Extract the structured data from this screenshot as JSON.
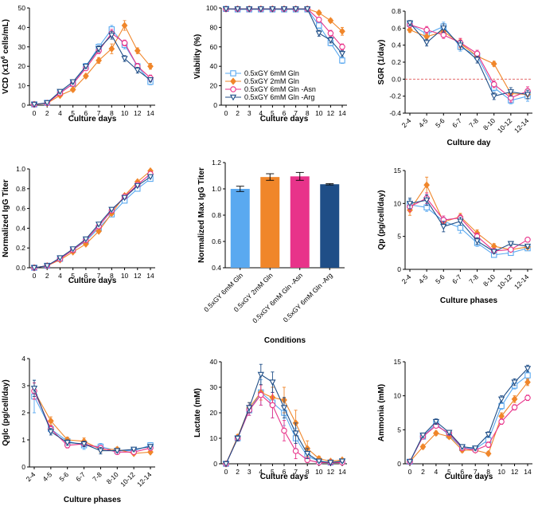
{
  "colors": {
    "g6": "#5aa9f0",
    "g2": "#f0862a",
    "asn": "#e8338a",
    "arg": "#1f4e87"
  },
  "legend": [
    {
      "key": "g6",
      "label": "0.5xGY 6mM Gln",
      "marker": "square"
    },
    {
      "key": "g2",
      "label": "0.5xGY 2mM Gln",
      "marker": "diamond"
    },
    {
      "key": "asn",
      "label": "0.5xGY 6mM Gln -Asn",
      "marker": "circle"
    },
    {
      "key": "arg",
      "label": "0.5xGY 6mM Gln -Arg",
      "marker": "triangle-down"
    }
  ],
  "chart_data": [
    {
      "id": "vcd",
      "type": "line",
      "ylabel_pre": "VCD (x10",
      "ylabel_sup": "6",
      "ylabel_post": " cells/mL)",
      "xlabel": "Culture days",
      "xticks": [
        0,
        2,
        4,
        5,
        6,
        7,
        8,
        10,
        12,
        14
      ],
      "ylim": [
        0,
        50
      ],
      "yticks": [
        0,
        10,
        20,
        30,
        40,
        50
      ],
      "series": [
        {
          "key": "g6",
          "values": [
            0.4,
            1.2,
            6.5,
            11,
            20,
            30,
            39,
            31,
            20,
            12
          ],
          "err": [
            0.3,
            0.4,
            0.8,
            1,
            1.5,
            1.5,
            2,
            2,
            1.5,
            1.5
          ]
        },
        {
          "key": "g2",
          "values": [
            0.4,
            1,
            5,
            8,
            15,
            23,
            29,
            41,
            28,
            20
          ],
          "err": [
            0.3,
            0.4,
            0.6,
            1,
            1,
            1.5,
            2.5,
            2.5,
            1.5,
            1.5
          ]
        },
        {
          "key": "asn",
          "values": [
            0.4,
            1.1,
            6.2,
            11,
            19,
            28,
            37,
            32,
            20,
            14
          ],
          "err": [
            0.3,
            0.4,
            0.8,
            1,
            1,
            1.5,
            2,
            1.5,
            1.5,
            1.5
          ]
        },
        {
          "key": "arg",
          "values": [
            0.4,
            1.2,
            7,
            12,
            20,
            29,
            36,
            24,
            18,
            13
          ],
          "err": [
            0.3,
            0.4,
            0.8,
            1,
            1,
            1.5,
            2,
            1.5,
            1.5,
            1
          ]
        }
      ]
    },
    {
      "id": "viability",
      "type": "line",
      "ylabel": "Viability (%)",
      "xlabel": "Culture days",
      "xticks": [
        0,
        2,
        3,
        4,
        5,
        6,
        7,
        8,
        10,
        12,
        14
      ],
      "ylim": [
        0,
        100
      ],
      "yticks": [
        0,
        20,
        40,
        60,
        80,
        100
      ],
      "series": [
        {
          "key": "g6",
          "values": [
            99,
            98.5,
            98.5,
            98.5,
            98.5,
            98.5,
            98.5,
            98.5,
            82,
            64,
            46
          ],
          "err": [
            0.5,
            0.5,
            0.5,
            0.5,
            0.5,
            0.5,
            0.5,
            0.5,
            3,
            3,
            3
          ]
        },
        {
          "key": "g2",
          "values": [
            99,
            99,
            99,
            99,
            99,
            99,
            99,
            99,
            95,
            87,
            76
          ],
          "err": [
            0.5,
            0.5,
            0.5,
            0.5,
            0.5,
            0.5,
            0.5,
            0.5,
            2,
            2,
            4
          ]
        },
        {
          "key": "asn",
          "values": [
            99,
            99,
            99,
            99,
            99,
            99,
            99,
            99,
            88,
            74,
            60
          ],
          "err": [
            0.5,
            0.5,
            0.5,
            0.5,
            0.5,
            0.5,
            0.5,
            0.5,
            2,
            3,
            3
          ]
        },
        {
          "key": "arg",
          "values": [
            99,
            99,
            99,
            99,
            99,
            99,
            99,
            99,
            74,
            67,
            53
          ],
          "err": [
            0.5,
            0.5,
            0.5,
            0.5,
            0.5,
            0.5,
            0.5,
            0.5,
            3,
            3,
            3
          ]
        }
      ]
    },
    {
      "id": "sgr",
      "type": "line",
      "ylabel": "SGR  (1/day)",
      "xlabel": "Culture day",
      "xticks": [
        "2-4",
        "4-5",
        "5-6",
        "6-7",
        "7-8",
        "8-10",
        "10-12",
        "12-14"
      ],
      "ylim": [
        -0.4,
        0.8
      ],
      "yticks": [
        -0.4,
        -0.2,
        0.0,
        0.2,
        0.4,
        0.6,
        0.8
      ],
      "zero_line": true,
      "series": [
        {
          "key": "g6",
          "values": [
            0.65,
            0.53,
            0.62,
            0.38,
            0.27,
            -0.1,
            -0.25,
            -0.2
          ],
          "err": [
            0.03,
            0.04,
            0.05,
            0.05,
            0.04,
            0.04,
            0.04,
            0.06
          ]
        },
        {
          "key": "g2",
          "values": [
            0.58,
            0.5,
            0.56,
            0.42,
            0.27,
            0.18,
            -0.17,
            -0.18
          ],
          "err": [
            0.03,
            0.03,
            0.04,
            0.05,
            0.04,
            0.03,
            0.04,
            0.05
          ]
        },
        {
          "key": "asn",
          "values": [
            0.64,
            0.58,
            0.52,
            0.43,
            0.3,
            -0.06,
            -0.22,
            -0.14
          ],
          "err": [
            0.03,
            0.04,
            0.04,
            0.05,
            0.04,
            0.04,
            0.05,
            0.05
          ]
        },
        {
          "key": "arg",
          "values": [
            0.66,
            0.43,
            0.6,
            0.4,
            0.23,
            -0.2,
            -0.15,
            -0.18
          ],
          "err": [
            0.03,
            0.04,
            0.05,
            0.05,
            0.04,
            0.04,
            0.05,
            0.05
          ]
        }
      ]
    },
    {
      "id": "titer",
      "type": "line",
      "ylabel": "Normalized IgG Titer",
      "xlabel": "Culture days",
      "xticks": [
        0,
        2,
        4,
        5,
        6,
        7,
        8,
        10,
        12,
        14
      ],
      "ylim": [
        0,
        1.0
      ],
      "yticks": [
        0.0,
        0.2,
        0.4,
        0.6,
        0.8,
        1.0
      ],
      "series": [
        {
          "key": "g6",
          "values": [
            0,
            0.02,
            0.09,
            0.18,
            0.27,
            0.4,
            0.54,
            0.68,
            0.8,
            0.9
          ],
          "err": [
            0,
            0.005,
            0.005,
            0.01,
            0.01,
            0.01,
            0.01,
            0.01,
            0.01,
            0.01
          ]
        },
        {
          "key": "g2",
          "values": [
            0,
            0.02,
            0.08,
            0.16,
            0.24,
            0.37,
            0.55,
            0.73,
            0.87,
            0.98
          ],
          "err": [
            0,
            0.005,
            0.005,
            0.01,
            0.01,
            0.01,
            0.01,
            0.01,
            0.015,
            0.015
          ]
        },
        {
          "key": "asn",
          "values": [
            0,
            0.02,
            0.09,
            0.18,
            0.28,
            0.42,
            0.58,
            0.72,
            0.84,
            0.95
          ],
          "err": [
            0,
            0.005,
            0.005,
            0.01,
            0.01,
            0.01,
            0.01,
            0.01,
            0.01,
            0.01
          ]
        },
        {
          "key": "arg",
          "values": [
            0,
            0.02,
            0.1,
            0.19,
            0.29,
            0.44,
            0.59,
            0.71,
            0.83,
            0.92
          ],
          "err": [
            0,
            0.005,
            0.005,
            0.01,
            0.01,
            0.01,
            0.01,
            0.01,
            0.01,
            0.01
          ]
        }
      ]
    },
    {
      "id": "maxtiter",
      "type": "bar",
      "ylabel": "Normalized Max IgG Titer",
      "xlabel": "Conditions",
      "categories": [
        "0.5xGY 6mM Gln",
        "0.5xGY 2mM Gln",
        "0.5xGY 6mM Gln -Asn",
        "0.5xGY 6mM Gln -Arg"
      ],
      "keys": [
        "g6",
        "g2",
        "asn",
        "arg"
      ],
      "values": [
        1.0,
        1.09,
        1.095,
        1.035
      ],
      "err": [
        0.02,
        0.025,
        0.03,
        0.005
      ],
      "ylim": [
        0.4,
        1.2
      ],
      "yticks": [
        0.4,
        0.6,
        0.8,
        1.0,
        1.2
      ]
    },
    {
      "id": "qp",
      "type": "line",
      "ylabel": "Qp (pg/cell/day)",
      "xlabel": "Culture phases",
      "xticks": [
        "2-4",
        "4-5",
        "5-6",
        "6-7",
        "7-8",
        "8-10",
        "10-12",
        "12-14"
      ],
      "ylim": [
        0,
        15
      ],
      "yticks": [
        0,
        5,
        10,
        15
      ],
      "series": [
        {
          "key": "g6",
          "values": [
            9.8,
            9.4,
            7.3,
            6.3,
            4.0,
            2.2,
            2.5,
            3.2
          ],
          "err": [
            0.8,
            0.6,
            0.6,
            0.8,
            0.5,
            0.3,
            0.3,
            0.3
          ]
        },
        {
          "key": "g2",
          "values": [
            9.0,
            12.8,
            7.2,
            8.0,
            5.5,
            3.5,
            3.0,
            3.4
          ],
          "err": [
            0.8,
            1.2,
            0.6,
            0.5,
            0.5,
            0.4,
            0.3,
            0.3
          ]
        },
        {
          "key": "asn",
          "values": [
            9.5,
            10.8,
            7.5,
            7.8,
            5.0,
            2.8,
            3.0,
            4.5
          ],
          "err": [
            0.7,
            0.8,
            0.6,
            0.5,
            0.5,
            0.3,
            0.3,
            0.3
          ]
        },
        {
          "key": "arg",
          "values": [
            10.0,
            10.5,
            6.5,
            7.3,
            4.3,
            2.7,
            3.9,
            3.5
          ],
          "err": [
            0.8,
            0.8,
            0.8,
            0.6,
            0.5,
            0.3,
            0.3,
            0.3
          ]
        }
      ]
    },
    {
      "id": "qglc",
      "type": "line",
      "ylabel": "Qglc (pg/cell/day)",
      "xlabel": "Culture phases",
      "xticks": [
        "2-4",
        "4-5",
        "5-6",
        "6-7",
        "7-8",
        "8-10",
        "10-12",
        "12-14"
      ],
      "ylim": [
        0,
        4
      ],
      "yticks": [
        0,
        1,
        2,
        3,
        4
      ],
      "series": [
        {
          "key": "g6",
          "values": [
            2.6,
            1.4,
            0.95,
            0.8,
            0.75,
            0.6,
            0.6,
            0.8
          ],
          "err": [
            0.6,
            0.15,
            0.12,
            0.15,
            0.12,
            0.08,
            0.08,
            0.1
          ]
        },
        {
          "key": "g2",
          "values": [
            2.8,
            1.7,
            1.0,
            0.95,
            0.65,
            0.65,
            0.5,
            0.55
          ],
          "err": [
            0.3,
            0.15,
            0.1,
            0.12,
            0.1,
            0.08,
            0.06,
            0.06
          ]
        },
        {
          "key": "asn",
          "values": [
            2.8,
            1.4,
            0.8,
            0.85,
            0.7,
            0.55,
            0.55,
            0.7
          ],
          "err": [
            0.3,
            0.12,
            0.1,
            0.1,
            0.1,
            0.06,
            0.06,
            0.08
          ]
        },
        {
          "key": "arg",
          "values": [
            2.9,
            1.3,
            0.9,
            0.85,
            0.6,
            0.6,
            0.65,
            0.75
          ],
          "err": [
            0.3,
            0.12,
            0.1,
            0.1,
            0.12,
            0.06,
            0.06,
            0.08
          ]
        }
      ]
    },
    {
      "id": "lactate",
      "type": "line",
      "ylabel": "Lactate (mM)",
      "xlabel": "Culture days",
      "xticks": [
        0,
        2,
        3,
        4,
        5,
        6,
        7,
        8,
        10,
        12,
        14
      ],
      "ylim": [
        0,
        40
      ],
      "yticks": [
        0,
        10,
        20,
        30,
        40
      ],
      "series": [
        {
          "key": "g6",
          "values": [
            0,
            10,
            21,
            28,
            24,
            20,
            10,
            3,
            1,
            0.5,
            1
          ],
          "err": [
            0,
            1,
            2,
            5,
            6,
            5,
            4,
            1.5,
            1,
            0.5,
            0.5
          ]
        },
        {
          "key": "g2",
          "values": [
            0,
            10.5,
            22,
            28,
            26,
            25,
            16,
            6,
            2,
            1,
            1.5
          ],
          "err": [
            0,
            1,
            2,
            3,
            4,
            5,
            5,
            3,
            1,
            0.5,
            0.5
          ]
        },
        {
          "key": "asn",
          "values": [
            0,
            10,
            21,
            27,
            23,
            13,
            5,
            1.5,
            0.5,
            0.5,
            0.5
          ],
          "err": [
            0,
            1,
            2,
            4,
            5,
            4,
            3,
            1,
            0.5,
            0.5,
            0.5
          ]
        },
        {
          "key": "arg",
          "values": [
            0,
            10,
            22,
            35,
            32,
            22,
            12,
            4,
            1,
            0.5,
            1
          ],
          "err": [
            0,
            1,
            2,
            4,
            4,
            4,
            4,
            2,
            0.5,
            0.5,
            0.5
          ]
        }
      ]
    },
    {
      "id": "ammonia",
      "type": "line",
      "ylabel": "Ammonia (mM)",
      "xlabel": "Culture days",
      "xticks": [
        0,
        2,
        4,
        5,
        6,
        7,
        8,
        10,
        12,
        14
      ],
      "ylim": [
        0,
        15
      ],
      "yticks": [
        0,
        5,
        10,
        15
      ],
      "series": [
        {
          "key": "g6",
          "values": [
            0.3,
            4,
            5.9,
            4.2,
            2.3,
            2.2,
            3.5,
            8.5,
            11.5,
            13
          ],
          "err": [
            0.1,
            0.3,
            0.4,
            0.3,
            0.3,
            0.3,
            0.4,
            0.5,
            0.5,
            0.6
          ]
        },
        {
          "key": "g2",
          "values": [
            0.3,
            2.5,
            4.5,
            4.0,
            2.0,
            2.0,
            1.5,
            7.0,
            9.5,
            12
          ],
          "err": [
            0.1,
            0.3,
            0.3,
            0.3,
            0.3,
            0.3,
            0.3,
            0.5,
            0.5,
            0.5
          ]
        },
        {
          "key": "asn",
          "values": [
            0.3,
            4,
            5.6,
            4.5,
            2.3,
            2.0,
            2.8,
            6.2,
            8.3,
            9.7
          ],
          "err": [
            0.1,
            0.3,
            0.3,
            0.3,
            0.3,
            0.3,
            0.4,
            0.4,
            0.4,
            0.4
          ]
        },
        {
          "key": "arg",
          "values": [
            0.3,
            4.2,
            6.2,
            4.6,
            2.5,
            2.3,
            4.3,
            9.5,
            12,
            14
          ],
          "err": [
            0.1,
            0.3,
            0.4,
            0.3,
            0.3,
            0.3,
            0.4,
            0.5,
            0.5,
            0.5
          ]
        }
      ]
    }
  ]
}
